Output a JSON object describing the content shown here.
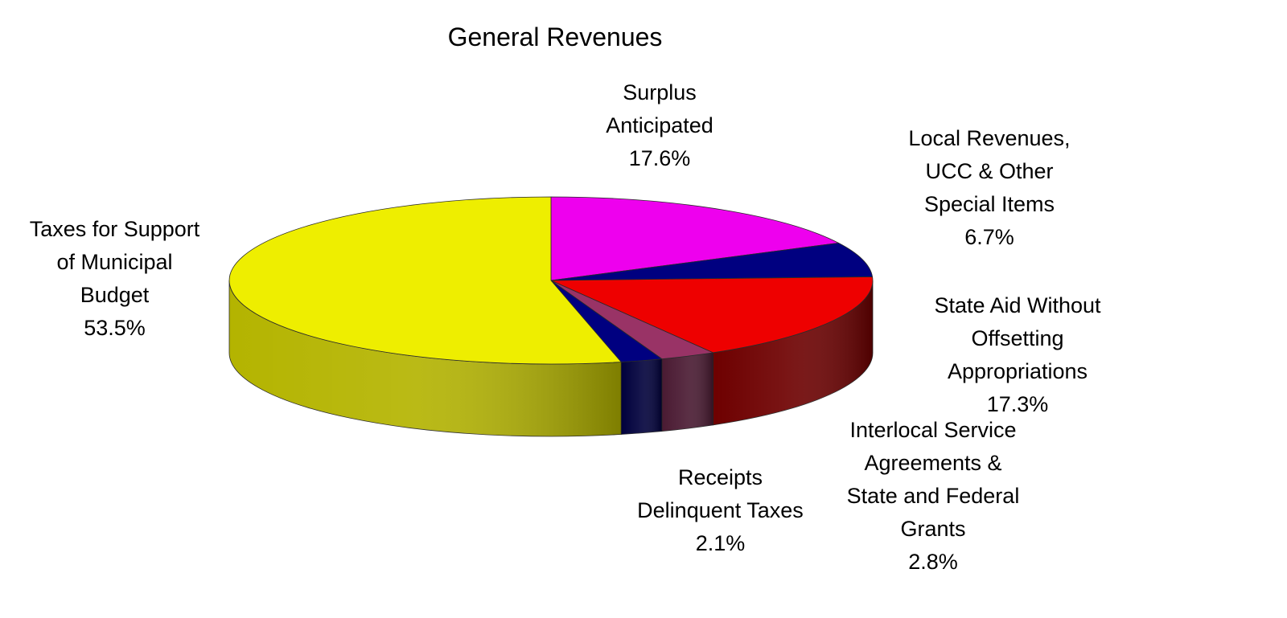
{
  "chart_data": {
    "type": "pie",
    "title": "General Revenues",
    "slices": [
      {
        "key": "surplus",
        "label": "Surplus\nAnticipated",
        "value": 17.6,
        "pct_label": "17.6%",
        "color": "#ee00ee",
        "side_color": "#8a008a"
      },
      {
        "key": "local",
        "label": "Local Revenues,\nUCC & Other\nSpecial Items",
        "value": 6.7,
        "pct_label": "6.7%",
        "color": "#000080",
        "side_color": "#00003c"
      },
      {
        "key": "state",
        "label": "State Aid Without\nOffsetting\nAppropriations",
        "value": 17.3,
        "pct_label": "17.3%",
        "color": "#ee0000",
        "side_color": "#6e0000"
      },
      {
        "key": "interlocal",
        "label": "Interlocal Service\nAgreements &\nState and Federal\nGrants",
        "value": 2.8,
        "pct_label": "2.8%",
        "color": "#993366",
        "side_color": "#4a1a32"
      },
      {
        "key": "receipts",
        "label": "Receipts\nDelinquent Taxes",
        "value": 2.1,
        "pct_label": "2.1%",
        "color": "#000080",
        "side_color": "#00003c"
      },
      {
        "key": "taxes",
        "label": "Taxes for Support\nof Municipal\nBudget",
        "value": 53.5,
        "pct_label": "53.5%",
        "color": "#eeee00",
        "side_color": "#b4b400"
      }
    ]
  }
}
